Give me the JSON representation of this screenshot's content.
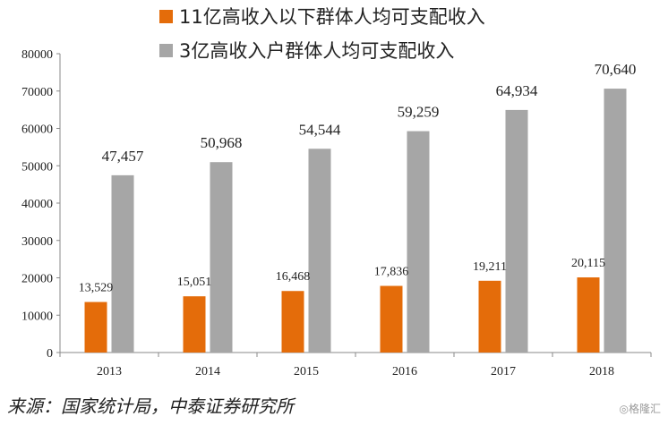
{
  "chart_data": {
    "type": "bar",
    "categories": [
      "2013",
      "2014",
      "2015",
      "2016",
      "2017",
      "2018"
    ],
    "series": [
      {
        "name": "11亿高收入以下群体人均可支配收入",
        "color": "#e46c0a",
        "values": [
          13529,
          15051,
          16468,
          17836,
          19211,
          20115
        ],
        "labels": [
          "13,529",
          "15,051",
          "16,468",
          "17,836",
          "19,211",
          "20,115"
        ]
      },
      {
        "name": "3亿高收入户群体人均可支配收入",
        "color": "#a6a6a6",
        "values": [
          47457,
          50968,
          54544,
          59259,
          64934,
          70640
        ],
        "labels": [
          "47,457",
          "50,968",
          "54,544",
          "59,259",
          "64,934",
          "70,640"
        ]
      }
    ],
    "ylim": [
      0,
      80000
    ],
    "yticks": [
      0,
      10000,
      20000,
      30000,
      40000,
      50000,
      60000,
      70000,
      80000
    ],
    "grid": false,
    "legend_position": "top"
  },
  "source": "来源：国家统计局，中泰证券研究所",
  "watermark": "◎格隆汇"
}
